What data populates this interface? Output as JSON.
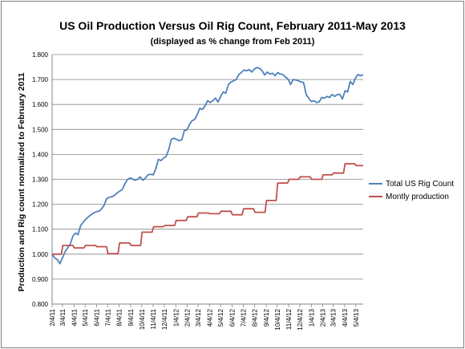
{
  "chart_data": {
    "type": "line",
    "title": "US Oil Production Versus Oil Rig Count, February 2011-May 2013",
    "subtitle": "(displayed as % change from Feb 2011)",
    "ylabel": "Production and Rig count normalized to February 2011",
    "xlabel": "",
    "ylim": [
      0.8,
      1.8
    ],
    "yticks": [
      "0.800",
      "0.900",
      "1.000",
      "1.100",
      "1.200",
      "1.300",
      "1.400",
      "1.500",
      "1.600",
      "1.700",
      "1.800"
    ],
    "xlim": [
      "2011-02-04",
      "2013-05-24"
    ],
    "xticks": [
      "2/4/11",
      "3/4/11",
      "4/4/11",
      "5/4/11",
      "6/4/11",
      "7/4/11",
      "8/4/11",
      "9/4/11",
      "10/4/11",
      "11/4/11",
      "12/4/11",
      "1/4/12",
      "2/4/12",
      "3/4/12",
      "4/4/12",
      "5/4/12",
      "6/4/12",
      "7/4/12",
      "8/4/12",
      "9/4/12",
      "10/4/12",
      "11/4/12",
      "12/4/12",
      "1/4/13",
      "2/4/13",
      "3/4/13",
      "4/4/13",
      "5/4/13"
    ],
    "grid": true,
    "legend_position": "right",
    "series": [
      {
        "name": "Total US Rig Count",
        "color": "#4f81bd",
        "points": [
          [
            "2011-02-04",
            1.0
          ],
          [
            "2011-02-11",
            0.985
          ],
          [
            "2011-02-18",
            0.978
          ],
          [
            "2011-02-25",
            0.962
          ],
          [
            "2011-03-04",
            0.985
          ],
          [
            "2011-03-11",
            1.01
          ],
          [
            "2011-03-18",
            1.025
          ],
          [
            "2011-03-25",
            1.04
          ],
          [
            "2011-04-01",
            1.072
          ],
          [
            "2011-04-08",
            1.085
          ],
          [
            "2011-04-15",
            1.078
          ],
          [
            "2011-04-22",
            1.115
          ],
          [
            "2011-04-29",
            1.128
          ],
          [
            "2011-05-06",
            1.14
          ],
          [
            "2011-05-13",
            1.15
          ],
          [
            "2011-05-20",
            1.158
          ],
          [
            "2011-05-27",
            1.165
          ],
          [
            "2011-06-03",
            1.17
          ],
          [
            "2011-06-10",
            1.172
          ],
          [
            "2011-06-17",
            1.18
          ],
          [
            "2011-06-24",
            1.195
          ],
          [
            "2011-07-01",
            1.222
          ],
          [
            "2011-07-08",
            1.228
          ],
          [
            "2011-07-15",
            1.23
          ],
          [
            "2011-07-22",
            1.235
          ],
          [
            "2011-07-29",
            1.245
          ],
          [
            "2011-08-05",
            1.252
          ],
          [
            "2011-08-12",
            1.258
          ],
          [
            "2011-08-19",
            1.28
          ],
          [
            "2011-08-26",
            1.298
          ],
          [
            "2011-09-02",
            1.305
          ],
          [
            "2011-09-09",
            1.302
          ],
          [
            "2011-09-16",
            1.296
          ],
          [
            "2011-09-23",
            1.3
          ],
          [
            "2011-09-30",
            1.31
          ],
          [
            "2011-10-07",
            1.296
          ],
          [
            "2011-10-14",
            1.305
          ],
          [
            "2011-10-21",
            1.318
          ],
          [
            "2011-10-28",
            1.32
          ],
          [
            "2011-11-04",
            1.318
          ],
          [
            "2011-11-11",
            1.342
          ],
          [
            "2011-11-18",
            1.38
          ],
          [
            "2011-11-25",
            1.375
          ],
          [
            "2011-12-02",
            1.385
          ],
          [
            "2011-12-09",
            1.392
          ],
          [
            "2011-12-16",
            1.42
          ],
          [
            "2011-12-23",
            1.46
          ],
          [
            "2011-12-30",
            1.465
          ],
          [
            "2012-01-06",
            1.46
          ],
          [
            "2012-01-13",
            1.455
          ],
          [
            "2012-01-20",
            1.458
          ],
          [
            "2012-01-27",
            1.495
          ],
          [
            "2012-02-03",
            1.498
          ],
          [
            "2012-02-10",
            1.52
          ],
          [
            "2012-02-17",
            1.535
          ],
          [
            "2012-02-24",
            1.54
          ],
          [
            "2012-03-02",
            1.56
          ],
          [
            "2012-03-09",
            1.585
          ],
          [
            "2012-03-16",
            1.58
          ],
          [
            "2012-03-23",
            1.595
          ],
          [
            "2012-03-30",
            1.615
          ],
          [
            "2012-04-06",
            1.608
          ],
          [
            "2012-04-13",
            1.615
          ],
          [
            "2012-04-20",
            1.625
          ],
          [
            "2012-04-27",
            1.61
          ],
          [
            "2012-05-04",
            1.632
          ],
          [
            "2012-05-11",
            1.65
          ],
          [
            "2012-05-18",
            1.645
          ],
          [
            "2012-05-25",
            1.68
          ],
          [
            "2012-06-01",
            1.69
          ],
          [
            "2012-06-08",
            1.695
          ],
          [
            "2012-06-15",
            1.7
          ],
          [
            "2012-06-22",
            1.72
          ],
          [
            "2012-06-29",
            1.728
          ],
          [
            "2012-07-06",
            1.738
          ],
          [
            "2012-07-13",
            1.735
          ],
          [
            "2012-07-20",
            1.74
          ],
          [
            "2012-07-27",
            1.73
          ],
          [
            "2012-08-03",
            1.742
          ],
          [
            "2012-08-10",
            1.748
          ],
          [
            "2012-08-17",
            1.745
          ],
          [
            "2012-08-24",
            1.735
          ],
          [
            "2012-08-31",
            1.718
          ],
          [
            "2012-09-07",
            1.73
          ],
          [
            "2012-09-14",
            1.722
          ],
          [
            "2012-09-21",
            1.725
          ],
          [
            "2012-09-28",
            1.715
          ],
          [
            "2012-10-05",
            1.728
          ],
          [
            "2012-10-12",
            1.722
          ],
          [
            "2012-10-19",
            1.72
          ],
          [
            "2012-10-26",
            1.71
          ],
          [
            "2012-11-02",
            1.702
          ],
          [
            "2012-11-09",
            1.68
          ],
          [
            "2012-11-16",
            1.7
          ],
          [
            "2012-11-23",
            1.698
          ],
          [
            "2012-11-30",
            1.695
          ],
          [
            "2012-12-07",
            1.69
          ],
          [
            "2012-12-14",
            1.688
          ],
          [
            "2012-12-21",
            1.64
          ],
          [
            "2012-12-28",
            1.625
          ],
          [
            "2013-01-04",
            1.612
          ],
          [
            "2013-01-11",
            1.615
          ],
          [
            "2013-01-18",
            1.608
          ],
          [
            "2013-01-25",
            1.61
          ],
          [
            "2013-02-01",
            1.628
          ],
          [
            "2013-02-08",
            1.625
          ],
          [
            "2013-02-15",
            1.632
          ],
          [
            "2013-02-22",
            1.628
          ],
          [
            "2013-03-01",
            1.64
          ],
          [
            "2013-03-08",
            1.632
          ],
          [
            "2013-03-15",
            1.64
          ],
          [
            "2013-03-22",
            1.64
          ],
          [
            "2013-03-29",
            1.622
          ],
          [
            "2013-04-05",
            1.655
          ],
          [
            "2013-04-12",
            1.65
          ],
          [
            "2013-04-19",
            1.692
          ],
          [
            "2013-04-26",
            1.68
          ],
          [
            "2013-05-03",
            1.705
          ],
          [
            "2013-05-10",
            1.72
          ],
          [
            "2013-05-17",
            1.715
          ],
          [
            "2013-05-24",
            1.72
          ]
        ]
      },
      {
        "name": "Montly production",
        "color": "#c0504d",
        "points": [
          [
            "2011-02-04",
            1.0
          ],
          [
            "2011-03-01",
            1.0
          ],
          [
            "2011-03-05",
            1.035
          ],
          [
            "2011-04-01",
            1.035
          ],
          [
            "2011-04-05",
            1.025
          ],
          [
            "2011-05-01",
            1.025
          ],
          [
            "2011-05-05",
            1.035
          ],
          [
            "2011-06-01",
            1.035
          ],
          [
            "2011-06-05",
            1.03
          ],
          [
            "2011-07-01",
            1.03
          ],
          [
            "2011-07-05",
            1.002
          ],
          [
            "2011-08-01",
            1.002
          ],
          [
            "2011-08-05",
            1.045
          ],
          [
            "2011-09-01",
            1.045
          ],
          [
            "2011-09-05",
            1.035
          ],
          [
            "2011-10-01",
            1.035
          ],
          [
            "2011-10-05",
            1.088
          ],
          [
            "2011-11-01",
            1.088
          ],
          [
            "2011-11-05",
            1.11
          ],
          [
            "2011-12-01",
            1.11
          ],
          [
            "2011-12-05",
            1.115
          ],
          [
            "2012-01-01",
            1.115
          ],
          [
            "2012-01-05",
            1.135
          ],
          [
            "2012-02-01",
            1.135
          ],
          [
            "2012-02-05",
            1.15
          ],
          [
            "2012-03-01",
            1.15
          ],
          [
            "2012-03-05",
            1.165
          ],
          [
            "2012-04-01",
            1.165
          ],
          [
            "2012-04-05",
            1.162
          ],
          [
            "2012-05-01",
            1.162
          ],
          [
            "2012-05-05",
            1.172
          ],
          [
            "2012-06-01",
            1.172
          ],
          [
            "2012-06-05",
            1.158
          ],
          [
            "2012-07-01",
            1.158
          ],
          [
            "2012-07-05",
            1.182
          ],
          [
            "2012-08-01",
            1.182
          ],
          [
            "2012-08-05",
            1.168
          ],
          [
            "2012-09-01",
            1.168
          ],
          [
            "2012-09-05",
            1.215
          ],
          [
            "2012-10-01",
            1.215
          ],
          [
            "2012-10-05",
            1.285
          ],
          [
            "2012-11-01",
            1.285
          ],
          [
            "2012-11-05",
            1.3
          ],
          [
            "2012-12-01",
            1.3
          ],
          [
            "2012-12-05",
            1.31
          ],
          [
            "2013-01-01",
            1.31
          ],
          [
            "2013-01-05",
            1.3
          ],
          [
            "2013-02-01",
            1.3
          ],
          [
            "2013-02-05",
            1.318
          ],
          [
            "2013-03-01",
            1.318
          ],
          [
            "2013-03-05",
            1.325
          ],
          [
            "2013-04-01",
            1.325
          ],
          [
            "2013-04-05",
            1.362
          ],
          [
            "2013-05-01",
            1.362
          ],
          [
            "2013-05-05",
            1.355
          ],
          [
            "2013-05-24",
            1.355
          ]
        ]
      }
    ]
  }
}
